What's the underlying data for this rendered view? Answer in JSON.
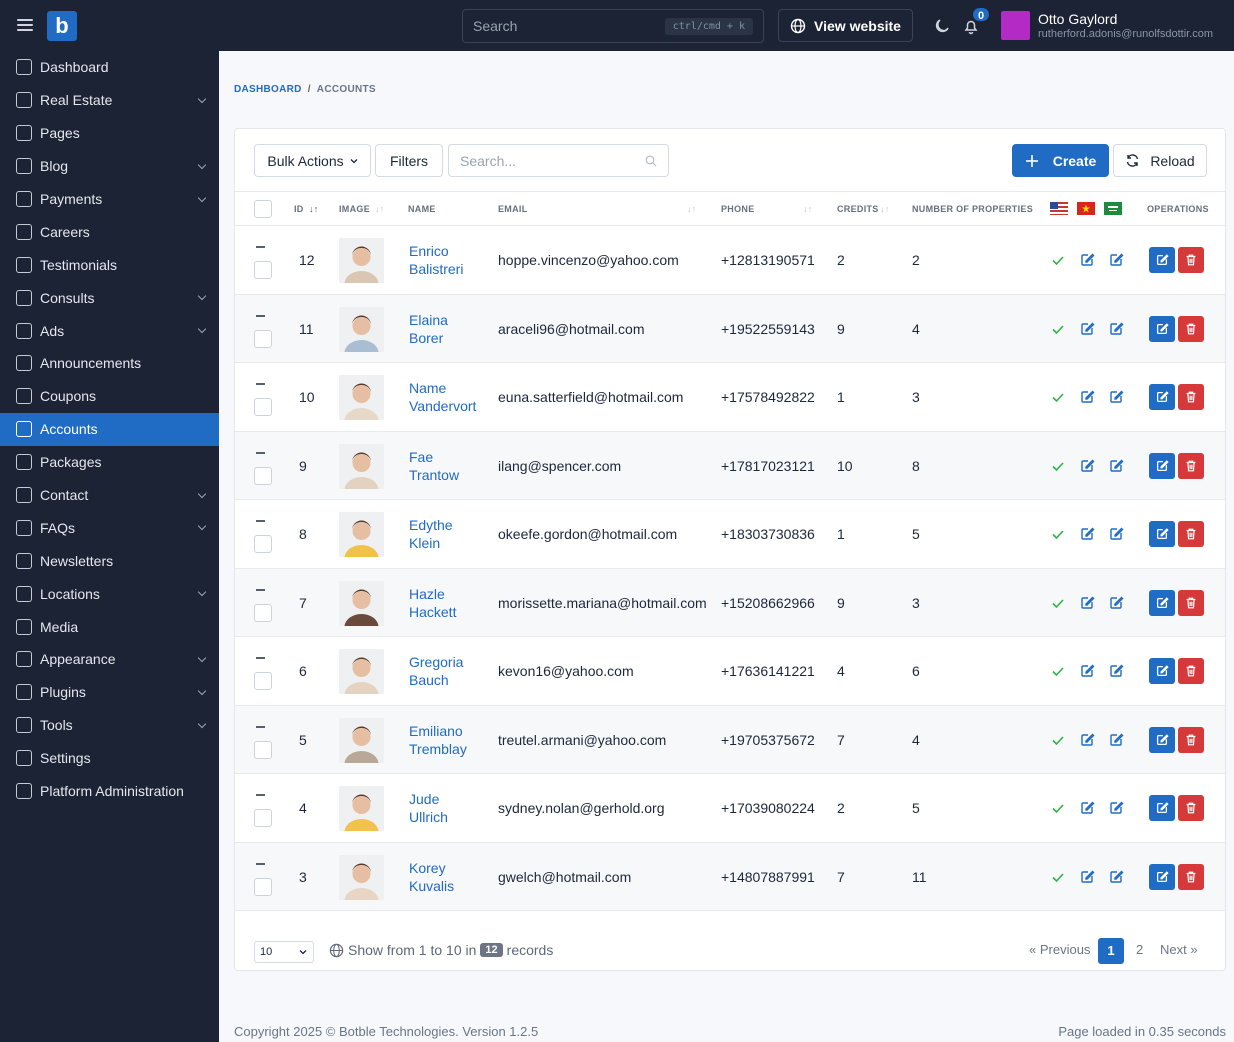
{
  "topbar": {
    "search_placeholder": "Search",
    "search_shortcut": "ctrl/cmd + k",
    "view_website": "View website",
    "notification_count": "0",
    "user_name": "Otto Gaylord",
    "user_email": "rutherford.adonis@runolfsdottir.com",
    "avatar_color": "#b32bc4"
  },
  "sidebar": {
    "items": [
      {
        "label": "Dashboard",
        "icon": "home-icon",
        "chevron": false
      },
      {
        "label": "Real Estate",
        "icon": "bed-icon",
        "chevron": true
      },
      {
        "label": "Pages",
        "icon": "book-icon",
        "chevron": false
      },
      {
        "label": "Blog",
        "icon": "article-icon",
        "chevron": true
      },
      {
        "label": "Payments",
        "icon": "credit-card-icon",
        "chevron": true
      },
      {
        "label": "Careers",
        "icon": "news-icon",
        "chevron": false
      },
      {
        "label": "Testimonials",
        "icon": "user-star-icon",
        "chevron": false
      },
      {
        "label": "Consults",
        "icon": "home-question-icon",
        "chevron": true
      },
      {
        "label": "Ads",
        "icon": "ad-circle-icon",
        "chevron": true
      },
      {
        "label": "Announcements",
        "icon": "speakerphone-icon",
        "chevron": false
      },
      {
        "label": "Coupons",
        "icon": "discount-icon",
        "chevron": false
      },
      {
        "label": "Accounts",
        "icon": "users-icon",
        "chevron": false,
        "active": true
      },
      {
        "label": "Packages",
        "icon": "packages-icon",
        "chevron": false
      },
      {
        "label": "Contact",
        "icon": "mail-icon",
        "chevron": true
      },
      {
        "label": "FAQs",
        "icon": "help-circle-icon",
        "chevron": true
      },
      {
        "label": "Newsletters",
        "icon": "mail-opened-icon",
        "chevron": false
      },
      {
        "label": "Locations",
        "icon": "world-icon",
        "chevron": true
      },
      {
        "label": "Media",
        "icon": "folder-icon",
        "chevron": false
      },
      {
        "label": "Appearance",
        "icon": "brush-icon",
        "chevron": true
      },
      {
        "label": "Plugins",
        "icon": "plug-icon",
        "chevron": true
      },
      {
        "label": "Tools",
        "icon": "tool-icon",
        "chevron": true
      },
      {
        "label": "Settings",
        "icon": "settings-icon",
        "chevron": false
      },
      {
        "label": "Platform Administration",
        "icon": "user-shield-icon",
        "chevron": false
      }
    ]
  },
  "breadcrumb": {
    "root": "DASHBOARD",
    "current": "ACCOUNTS"
  },
  "toolbar": {
    "bulk_actions": "Bulk Actions",
    "filters": "Filters",
    "search_placeholder": "Search...",
    "create": "Create",
    "reload": "Reload"
  },
  "table": {
    "headers": {
      "id": "ID",
      "image": "IMAGE",
      "name": "NAME",
      "email": "EMAIL",
      "phone": "PHONE",
      "credits": "CREDITS",
      "properties": "NUMBER OF PROPERTIES",
      "operations": "OPERATIONS"
    },
    "rows": [
      {
        "id": "12",
        "first": "Enrico",
        "last": "Balistreri",
        "email": "hoppe.vincenzo@yahoo.com",
        "phone": "+12813190571",
        "credits": "2",
        "properties": "2"
      },
      {
        "id": "11",
        "first": "Elaina",
        "last": "Borer",
        "email": "araceli96@hotmail.com",
        "phone": "+19522559143",
        "credits": "9",
        "properties": "4"
      },
      {
        "id": "10",
        "first": "Name",
        "last": "Vandervort",
        "email": "euna.satterfield@hotmail.com",
        "phone": "+17578492822",
        "credits": "1",
        "properties": "3"
      },
      {
        "id": "9",
        "first": "Fae",
        "last": "Trantow",
        "email": "ilang@spencer.com",
        "phone": "+17817023121",
        "credits": "10",
        "properties": "8"
      },
      {
        "id": "8",
        "first": "Edythe",
        "last": "Klein",
        "email": "okeefe.gordon@hotmail.com",
        "phone": "+18303730836",
        "credits": "1",
        "properties": "5"
      },
      {
        "id": "7",
        "first": "Hazle",
        "last": "Hackett",
        "email": "morissette.mariana@hotmail.com",
        "phone": "+15208662966",
        "credits": "9",
        "properties": "3"
      },
      {
        "id": "6",
        "first": "Gregoria",
        "last": "Bauch",
        "email": "kevon16@yahoo.com",
        "phone": "+17636141221",
        "credits": "4",
        "properties": "6"
      },
      {
        "id": "5",
        "first": "Emiliano",
        "last": "Tremblay",
        "email": "treutel.armani@yahoo.com",
        "phone": "+19705375672",
        "credits": "7",
        "properties": "4"
      },
      {
        "id": "4",
        "first": "Jude",
        "last": "Ullrich",
        "email": "sydney.nolan@gerhold.org",
        "phone": "+17039080224",
        "credits": "2",
        "properties": "5"
      },
      {
        "id": "3",
        "first": "Korey",
        "last": "Kuvalis",
        "email": "gwelch@hotmail.com",
        "phone": "+14807887991",
        "credits": "7",
        "properties": "11"
      }
    ]
  },
  "pagination": {
    "per_page": "10",
    "show_from": "Show from 1 to 10 in",
    "total": "12",
    "records": "records",
    "previous": "« Previous",
    "page1": "1",
    "page2": "2",
    "next": "Next »"
  },
  "footer": {
    "copyright": "Copyright 2025 © Botble Technologies. Version 1.2.5",
    "loaded": "Page loaded in 0.35 seconds"
  },
  "colors": {
    "primary": "#206bc4",
    "danger": "#d63939",
    "sidebar": "#1b2334",
    "success": "#2fb344"
  }
}
